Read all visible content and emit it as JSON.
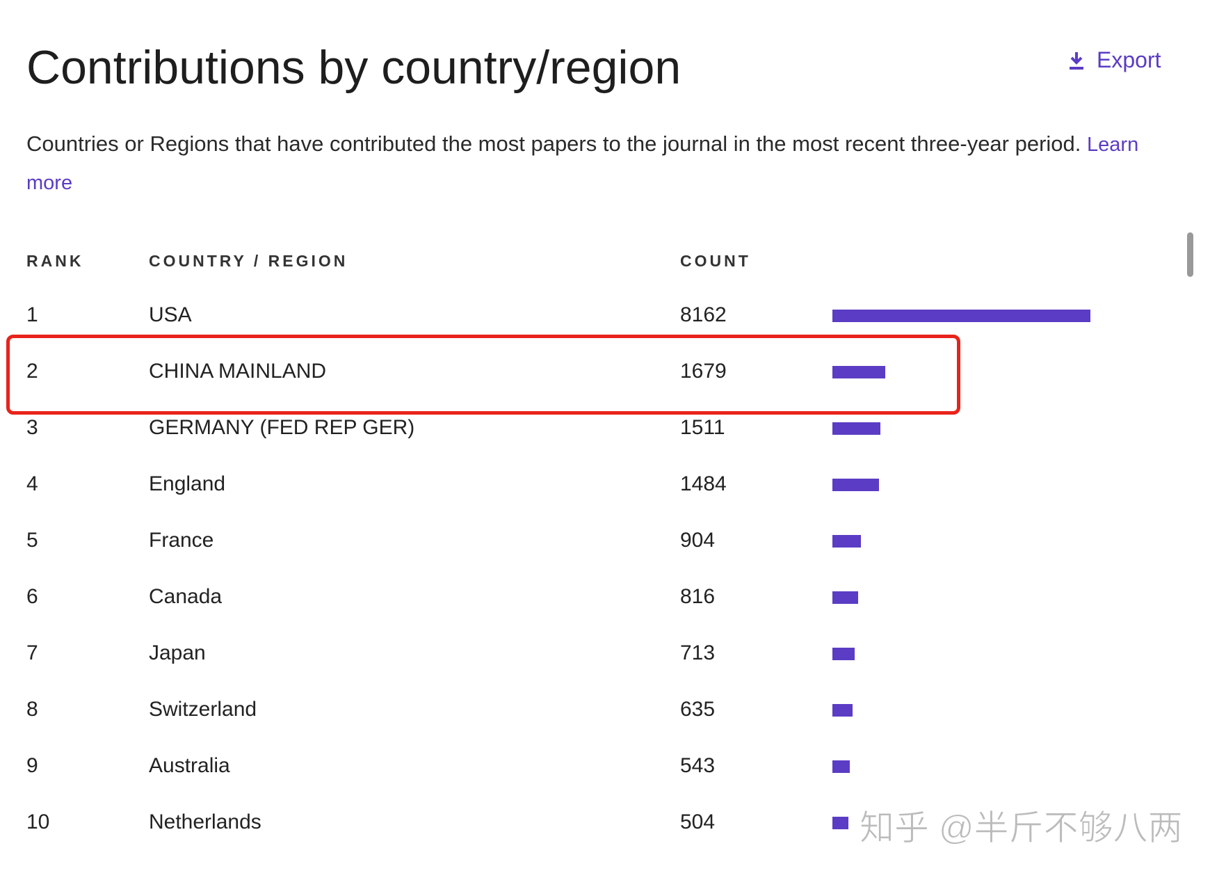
{
  "header": {
    "title": "Contributions by country/region",
    "export": "Export"
  },
  "description": {
    "text": "Countries or Regions that have contributed the most papers to the journal in the most recent three-year period.",
    "link": "Learn more"
  },
  "table": {
    "columns": [
      "RANK",
      "COUNTRY / REGION",
      "COUNT"
    ],
    "rows": [
      [
        1,
        "USA",
        8162
      ],
      [
        2,
        "CHINA MAINLAND",
        1679
      ],
      [
        3,
        "GERMANY (FED REP GER)",
        1511
      ],
      [
        4,
        "England",
        1484
      ],
      [
        5,
        "France",
        904
      ],
      [
        6,
        "Canada",
        816
      ],
      [
        7,
        "Japan",
        713
      ],
      [
        8,
        "Switzerland",
        635
      ],
      [
        9,
        "Australia",
        543
      ],
      [
        10,
        "Netherlands",
        504
      ]
    ],
    "bar_color": "#5b3cc4"
  },
  "watermark": "知乎 @半斤不够八两"
}
